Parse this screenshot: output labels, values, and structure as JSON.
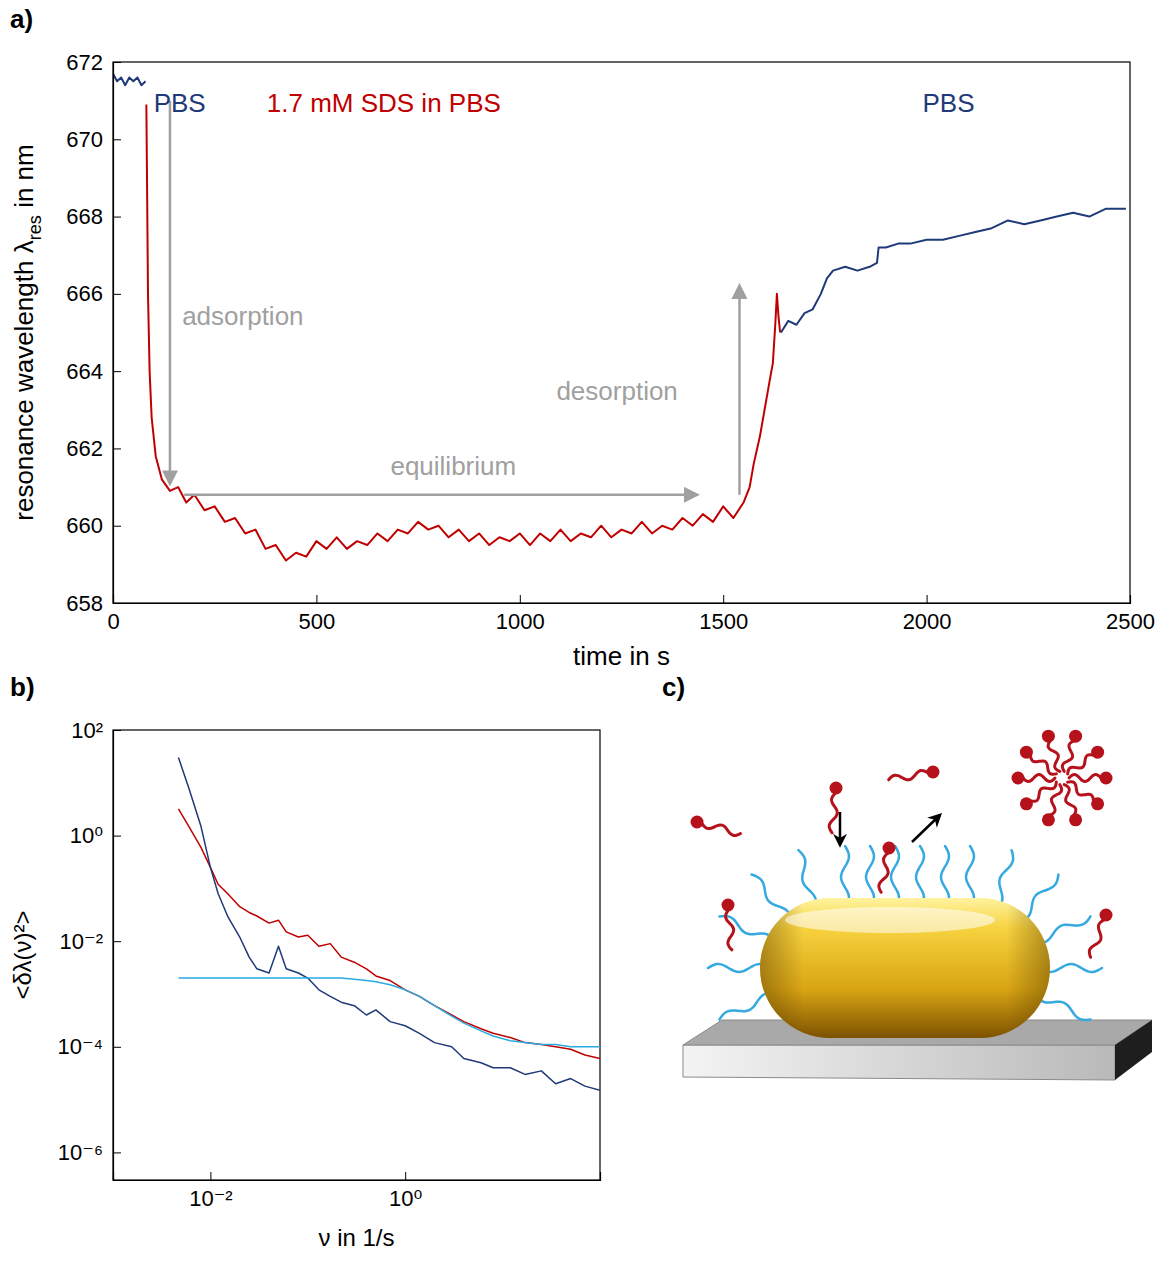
{
  "chart_data": [
    {
      "type": "line",
      "panel": "a)",
      "x_label": "time in s",
      "y_label": [
        "resonance wavelength λ",
        "res",
        " in nm"
      ],
      "xlim": [
        0,
        2500
      ],
      "ylim": [
        658,
        672
      ],
      "xticks": [
        0,
        500,
        1000,
        1500,
        2000,
        2500
      ],
      "yticks": [
        658,
        660,
        662,
        664,
        666,
        668,
        670,
        672
      ],
      "series": [
        {
          "color": "#1f3a78",
          "x": [
            0,
            10,
            20,
            30,
            40,
            50,
            60,
            70,
            80
          ],
          "values": [
            671.7,
            671.5,
            671.6,
            671.4,
            671.6,
            671.5,
            671.6,
            671.4,
            671.5
          ]
        },
        {
          "color": "#c00000",
          "x": [
            82,
            84,
            86,
            90,
            95,
            105,
            120,
            140,
            160,
            180,
            200,
            225,
            250,
            275,
            300,
            325,
            350,
            375,
            400,
            425,
            450,
            475,
            500,
            525,
            550,
            575,
            600,
            625,
            650,
            675,
            700,
            725,
            750,
            775,
            800,
            825,
            850,
            875,
            900,
            925,
            950,
            975,
            1000,
            1025,
            1050,
            1075,
            1100,
            1125,
            1150,
            1175,
            1200,
            1225,
            1250,
            1275,
            1300,
            1325,
            1350,
            1375,
            1400,
            1425,
            1450,
            1475,
            1500,
            1525,
            1550,
            1565,
            1575,
            1590,
            1605,
            1615,
            1622,
            1628,
            1632,
            1636,
            1640
          ],
          "values": [
            670.9,
            668.5,
            666.0,
            664.0,
            662.8,
            661.8,
            661.2,
            660.9,
            661.0,
            660.6,
            660.8,
            660.4,
            660.5,
            660.1,
            660.2,
            659.8,
            659.9,
            659.4,
            659.5,
            659.1,
            659.3,
            659.2,
            659.6,
            659.4,
            659.7,
            659.4,
            659.6,
            659.5,
            659.8,
            659.6,
            659.9,
            659.8,
            660.1,
            659.9,
            660.0,
            659.7,
            659.9,
            659.6,
            659.8,
            659.5,
            659.7,
            659.6,
            659.8,
            659.5,
            659.8,
            659.6,
            659.9,
            659.6,
            659.8,
            659.7,
            660.0,
            659.7,
            659.9,
            659.8,
            660.1,
            659.8,
            660.0,
            659.9,
            660.2,
            660.0,
            660.3,
            660.1,
            660.5,
            660.2,
            660.6,
            661.0,
            661.6,
            662.3,
            663.2,
            663.8,
            664.2,
            665.2,
            666.0,
            665.4,
            665.0
          ]
        },
        {
          "color": "#1f3a78",
          "x": [
            1642,
            1660,
            1680,
            1700,
            1720,
            1740,
            1755,
            1770,
            1800,
            1830,
            1860,
            1878,
            1882,
            1900,
            1930,
            1960,
            2000,
            2040,
            2080,
            2120,
            2160,
            2200,
            2240,
            2280,
            2320,
            2360,
            2400,
            2440,
            2490
          ],
          "values": [
            665.0,
            665.3,
            665.2,
            665.5,
            665.6,
            666.0,
            666.4,
            666.6,
            666.7,
            666.6,
            666.7,
            666.8,
            667.2,
            667.2,
            667.3,
            667.3,
            667.4,
            667.4,
            667.5,
            667.6,
            667.7,
            667.9,
            667.8,
            667.9,
            668.0,
            668.1,
            668.0,
            668.2,
            668.2
          ]
        }
      ],
      "annotations": [
        {
          "text": "PBS",
          "x": 100,
          "y": 670.7,
          "color": "#1f3a78"
        },
        {
          "text": "1.7 mM SDS in PBS",
          "x": 378,
          "y": 670.7,
          "color": "#c00000"
        },
        {
          "text": "PBS",
          "x": 1990,
          "y": 670.7,
          "color": "#1f3a78"
        },
        {
          "text": "adsorption",
          "x": 170,
          "y": 665.2,
          "color": "#a0a0a0"
        },
        {
          "text": "equilibrium",
          "x": 682,
          "y": 661.3,
          "color": "#a0a0a0"
        },
        {
          "text": "desorption",
          "x": 1090,
          "y": 663.25,
          "color": "#a0a0a0"
        }
      ],
      "arrows": [
        {
          "from": [
            140,
            671.0
          ],
          "to": [
            140,
            661.1
          ],
          "color": "#a0a0a0"
        },
        {
          "from": [
            175,
            660.8
          ],
          "to": [
            1435,
            660.8
          ],
          "color": "#a0a0a0"
        },
        {
          "from": [
            1540,
            660.8
          ],
          "to": [
            1540,
            666.2
          ],
          "color": "#a0a0a0"
        }
      ]
    },
    {
      "type": "line",
      "panel": "b)",
      "log": true,
      "x_label": "ν in 1/s",
      "y_label": "<δλ(ν)²>",
      "xlim": [
        0.001,
        100
      ],
      "ylim": [
        3e-07,
        100
      ],
      "xticks": [
        {
          "value": 0.01,
          "label": "10⁻²"
        },
        {
          "value": 1,
          "label": "10⁰"
        }
      ],
      "yticks": [
        {
          "value": 1e-06,
          "label": "10⁻⁶"
        },
        {
          "value": 0.0001,
          "label": "10⁻⁴"
        },
        {
          "value": 0.01,
          "label": "10⁻²"
        },
        {
          "value": 1,
          "label": "10⁰"
        },
        {
          "value": 100,
          "label": "10²"
        }
      ],
      "x": [
        0.0047,
        0.006,
        0.008,
        0.01,
        0.012,
        0.015,
        0.02,
        0.025,
        0.03,
        0.04,
        0.05,
        0.06,
        0.08,
        0.1,
        0.13,
        0.17,
        0.22,
        0.3,
        0.4,
        0.5,
        0.7,
        1,
        1.4,
        2,
        3,
        4,
        6,
        8,
        12,
        17,
        25,
        35,
        50,
        70,
        100
      ],
      "series": [
        {
          "color": "#c00000",
          "values": [
            3.2,
            1.5,
            0.6,
            0.25,
            0.12,
            0.08,
            0.045,
            0.035,
            0.03,
            0.022,
            0.025,
            0.015,
            0.012,
            0.013,
            0.008,
            0.009,
            0.005,
            0.004,
            0.003,
            0.0022,
            0.0018,
            0.0012,
            0.0009,
            0.0006,
            0.0004,
            0.0003,
            0.00022,
            0.00018,
            0.00015,
            0.00012,
            0.00011,
            0.0001,
            9e-05,
            7e-05,
            6e-05
          ]
        },
        {
          "color": "#1f3a78",
          "values": [
            30,
            8,
            1.5,
            0.25,
            0.08,
            0.03,
            0.012,
            0.005,
            0.003,
            0.0025,
            0.008,
            0.003,
            0.0025,
            0.002,
            0.0012,
            0.0009,
            0.0007,
            0.0006,
            0.0004,
            0.0005,
            0.0003,
            0.00025,
            0.00018,
            0.00012,
            0.0001,
            6e-05,
            5e-05,
            4e-05,
            4e-05,
            3e-05,
            3.5e-05,
            2e-05,
            2.5e-05,
            1.8e-05,
            1.5e-05
          ]
        },
        {
          "color": "#29abe2",
          "values": [
            0.002,
            0.002,
            0.002,
            0.002,
            0.002,
            0.002,
            0.002,
            0.002,
            0.002,
            0.002,
            0.002,
            0.002,
            0.002,
            0.002,
            0.002,
            0.002,
            0.002,
            0.0019,
            0.0018,
            0.0017,
            0.0015,
            0.0012,
            0.0009,
            0.0006,
            0.00038,
            0.00028,
            0.0002,
            0.00016,
            0.00013,
            0.00012,
            0.00011,
            0.00011,
            0.0001,
            0.0001,
            0.0001
          ]
        }
      ]
    }
  ],
  "diagram": {
    "panel": "c)"
  }
}
